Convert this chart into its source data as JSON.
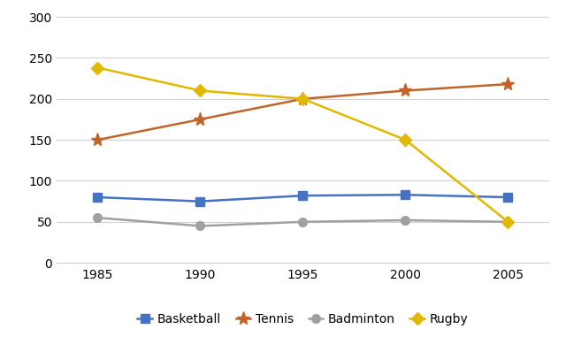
{
  "years": [
    1985,
    1990,
    1995,
    2000,
    2005
  ],
  "series": {
    "Basketball": {
      "values": [
        80,
        75,
        82,
        83,
        80
      ],
      "color": "#4472C4",
      "marker": "s",
      "markersize": 7
    },
    "Tennis": {
      "values": [
        150,
        175,
        200,
        210,
        218
      ],
      "color": "#C0642A",
      "marker": "*",
      "markersize": 11
    },
    "Badminton": {
      "values": [
        55,
        45,
        50,
        52,
        50
      ],
      "color": "#A0A0A0",
      "marker": "o",
      "markersize": 7
    },
    "Rugby": {
      "values": [
        238,
        210,
        200,
        150,
        50
      ],
      "color": "#E0B800",
      "marker": "D",
      "markersize": 7
    }
  },
  "ylim": [
    0,
    300
  ],
  "yticks": [
    0,
    50,
    100,
    150,
    200,
    250,
    300
  ],
  "xlim": [
    1983,
    2007
  ],
  "background_color": "#ffffff",
  "grid_color": "#d0d0d0",
  "linewidth": 1.8,
  "legend_order": [
    "Basketball",
    "Tennis",
    "Badminton",
    "Rugby"
  ]
}
